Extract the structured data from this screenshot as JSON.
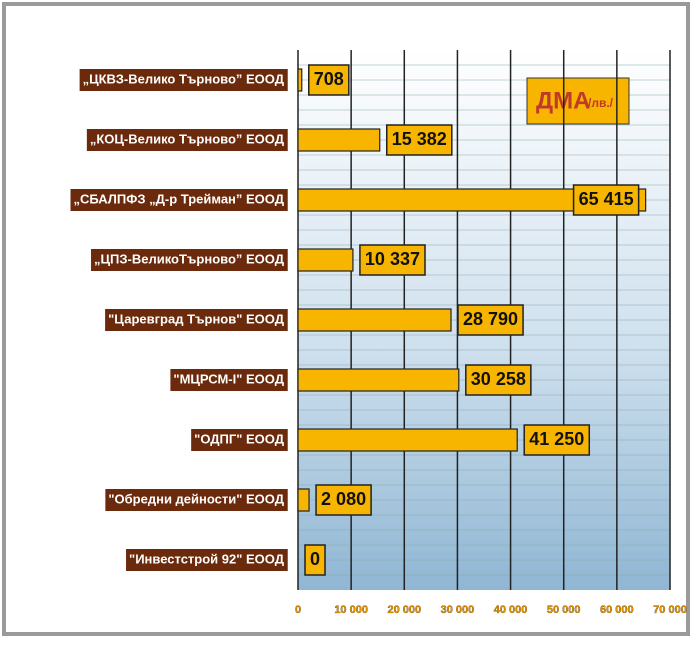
{
  "chart_data": {
    "type": "hbar",
    "title": "ДМА",
    "unit": "/лв./",
    "categories": [
      "„ЦКВЗ-Велико Търново” ЕООД",
      "„КОЦ-Велико Търново” ЕООД",
      "„СБАЛПФЗ „Д-р Трейман” ЕООД",
      "„ЦПЗ-ВеликоТърново” ЕООД",
      "\"Царевград Търнов\" ЕООД",
      "\"МЦРСМ-I\" ЕООД",
      "\"ОДПГ\" ЕООД",
      "\"Обредни дейности\" ЕООД",
      "\"Инвестстрой 92\" ЕООД"
    ],
    "values": [
      708,
      15382,
      65415,
      10337,
      28790,
      30258,
      41250,
      2080,
      0
    ],
    "value_labels": [
      "708",
      "15 382",
      "65 415",
      "10 337",
      "28 790",
      "30 258",
      "41 250",
      "2 080",
      "0"
    ],
    "color": "#f7b500",
    "xlim": [
      0,
      70000
    ],
    "xticks": [
      0,
      {
        "value": 10000,
        "label": "10 000"
      },
      {
        "value": 20000,
        "label": "20 000"
      },
      {
        "value": 30000,
        "label": "30 000"
      },
      {
        "value": 40000,
        "label": "40 000"
      },
      {
        "value": 50000,
        "label": "50 000"
      },
      {
        "value": 60000,
        "label": "60 000"
      },
      {
        "value": 70000,
        "label": "70 000"
      }
    ],
    "grid": true
  }
}
